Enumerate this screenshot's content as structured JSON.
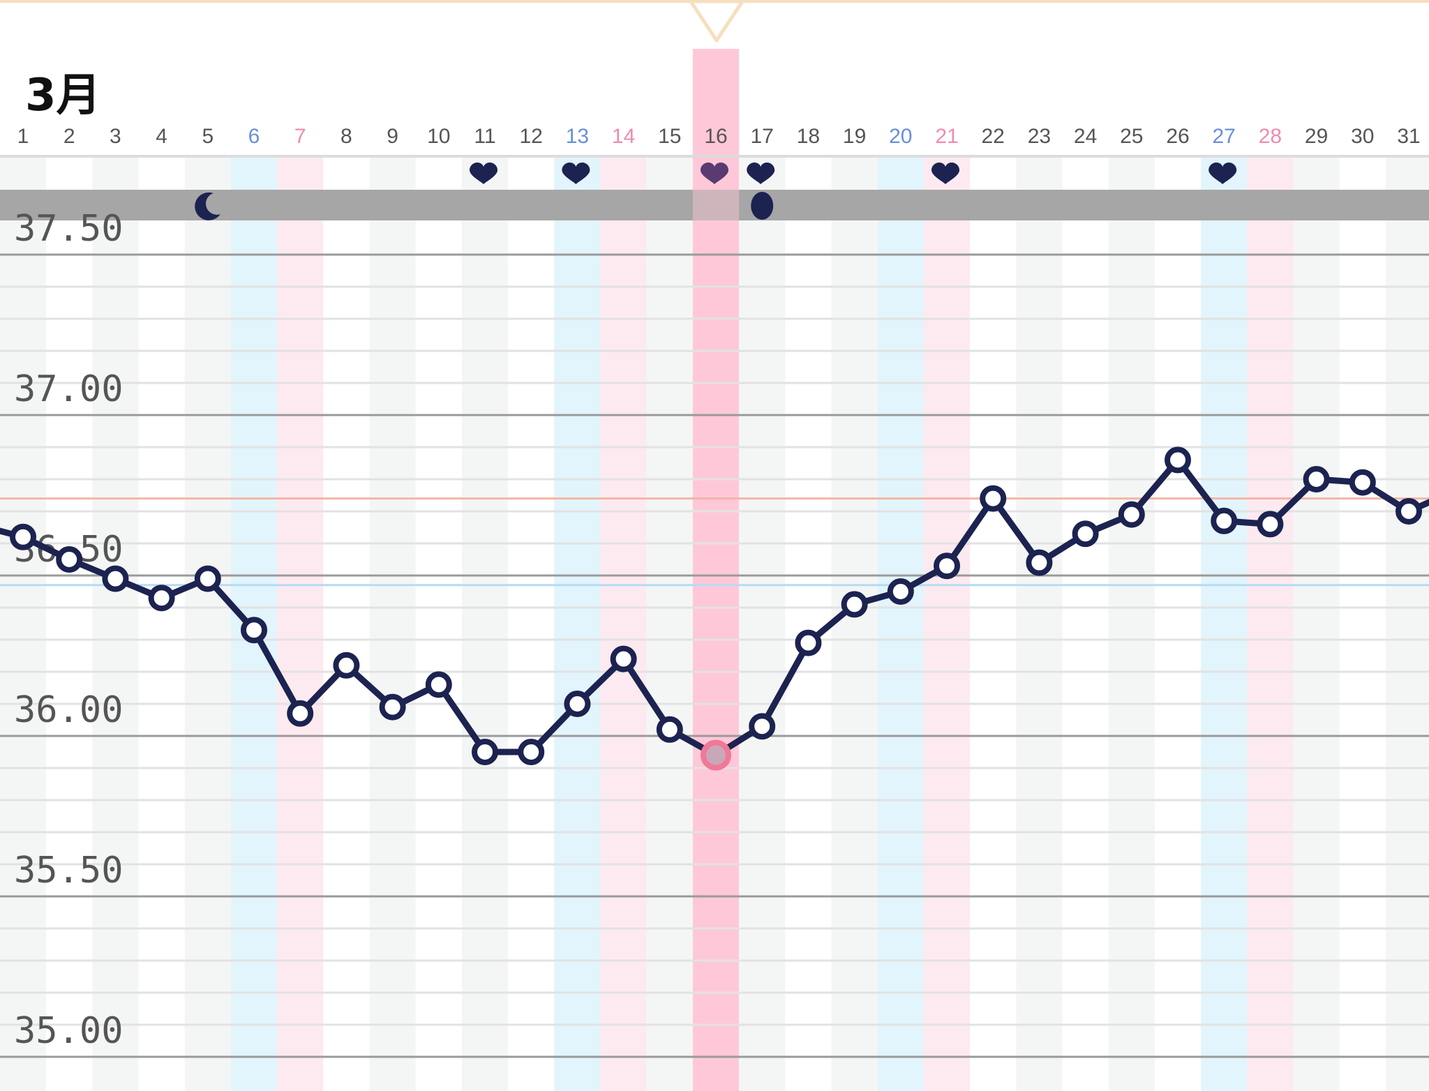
{
  "chart": {
    "month_label": "3月"
  },
  "colors": {
    "line": "#1c2350",
    "marker_fill": "#ffffff",
    "selected_marker": "#f07898",
    "selected_band": "#ffc8d8",
    "saturday_band": "#e2f4fc",
    "sunday_band": "#fdeaf0",
    "alt_band": "#f4f6f5",
    "saturday_text": "#6a8fd8",
    "sunday_text": "#f08ab0",
    "weekday_text": "#555555",
    "grid_major": "#9a9a9a",
    "grid_minor": "#e2e2e2",
    "threshold_high": "#f5b5a5",
    "threshold_low": "#b5dcf5",
    "symbol_bar": "#a6a6a6",
    "top_border": "#f5dfbf"
  },
  "chart_data": {
    "type": "line",
    "title": "",
    "month": "3月",
    "x": [
      1,
      2,
      3,
      4,
      5,
      6,
      7,
      8,
      9,
      10,
      11,
      12,
      13,
      14,
      15,
      16,
      17,
      18,
      19,
      20,
      21,
      22,
      23,
      24,
      25,
      26,
      27,
      28,
      29,
      30,
      31
    ],
    "x_tick_labels": [
      "1",
      "2",
      "3",
      "4",
      "5",
      "6",
      "7",
      "8",
      "9",
      "10",
      "11",
      "12",
      "13",
      "14",
      "15",
      "16",
      "17",
      "18",
      "19",
      "20",
      "21",
      "22",
      "23",
      "24",
      "25",
      "26",
      "27",
      "28",
      "29",
      "30",
      "31"
    ],
    "saturdays": [
      6,
      13,
      20,
      27
    ],
    "sundays": [
      7,
      14,
      21,
      28
    ],
    "series": [
      {
        "values": [
          36.62,
          36.55,
          36.49,
          36.43,
          36.49,
          36.33,
          36.07,
          36.22,
          36.09,
          36.16,
          35.95,
          35.95,
          36.1,
          36.24,
          36.02,
          35.94,
          36.03,
          36.29,
          36.41,
          36.45,
          36.53,
          36.74,
          36.54,
          36.63,
          36.69,
          36.86,
          36.67,
          36.66,
          36.8,
          36.79,
          36.7
        ]
      }
    ],
    "ylim": [
      35.0,
      37.5
    ],
    "y_tick_labels": [
      "37.50",
      "37.00",
      "36.50",
      "36.00",
      "35.50",
      "35.00"
    ],
    "y_ticks": [
      37.5,
      37.0,
      36.5,
      36.0,
      35.5,
      35.0
    ],
    "reference_lines": [
      {
        "value": 36.74,
        "color": "#f5b5a5"
      },
      {
        "value": 36.47,
        "color": "#b5dcf5"
      }
    ],
    "selected_day": 16,
    "heart_days": [
      11,
      13,
      16,
      17,
      21,
      27
    ],
    "moon_days": [
      5
    ],
    "drop_days": [
      17
    ],
    "grid": true,
    "legend": "none"
  }
}
